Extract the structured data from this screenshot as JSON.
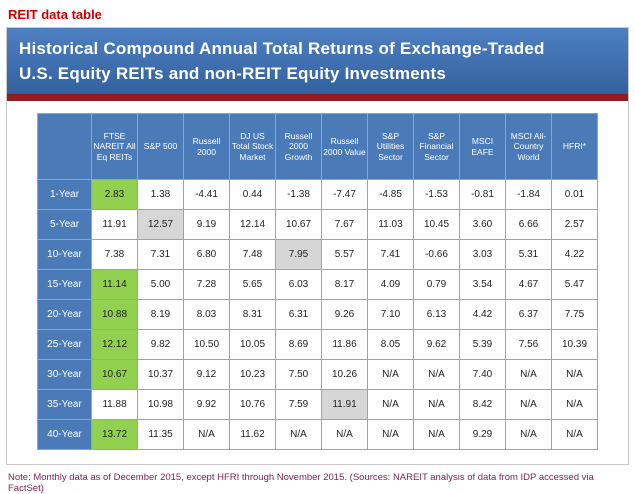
{
  "page_title": "REIT data table",
  "banner": {
    "line1": "Historical Compound Annual Total Returns of Exchange-Traded",
    "line2": "U.S. Equity REITs and non-REIT Equity Investments"
  },
  "note": "Note: Monthly data as of December 2015, except HFRI through November 2015. (Sources: NAREIT analysis of data from IDP accessed via FactSet)",
  "colors": {
    "title_red": "#cc0000",
    "banner_top": "#4d80c2",
    "banner_bottom": "#33619f",
    "stripe_red": "#8e1f1f",
    "header_blue": "#4a7ab8",
    "highlight_green": "#92d050",
    "highlight_gray": "#d6d6d6",
    "note_color": "#7c2457",
    "border_gray": "#c9c9c9"
  },
  "chart_data": {
    "type": "table",
    "title": "Historical Compound Annual Total Returns of Exchange-Traded U.S. Equity REITs and non-REIT Equity Investments",
    "columns": [
      "FTSE NAREIT All Eq REITs",
      "S&P 500",
      "Russell 2000",
      "DJ US Total Stock Market",
      "Russell 2000 Growth",
      "Russell 2000 Value",
      "S&P Utilities Sector",
      "S&P Financial Sector",
      "MSCI EAFE",
      "MSCI All-Country World",
      "HFRI*"
    ],
    "rows": [
      {
        "label": "1-Year",
        "values": [
          "2.83",
          "1.38",
          "-4.41",
          "0.44",
          "-1.38",
          "-7.47",
          "-4.85",
          "-1.53",
          "-0.81",
          "-1.84",
          "0.01"
        ],
        "highlight_col": 0,
        "highlight_color": "green"
      },
      {
        "label": "5-Year",
        "values": [
          "11.91",
          "12.57",
          "9.19",
          "12.14",
          "10.67",
          "7.67",
          "11.03",
          "10.45",
          "3.60",
          "6.66",
          "2.57"
        ],
        "highlight_col": 1,
        "highlight_color": "gray"
      },
      {
        "label": "10-Year",
        "values": [
          "7.38",
          "7.31",
          "6.80",
          "7.48",
          "7.95",
          "5.57",
          "7.41",
          "-0.66",
          "3.03",
          "5.31",
          "4.22"
        ],
        "highlight_col": 4,
        "highlight_color": "gray"
      },
      {
        "label": "15-Year",
        "values": [
          "11.14",
          "5.00",
          "7.28",
          "5.65",
          "6.03",
          "8.17",
          "4.09",
          "0.79",
          "3.54",
          "4.67",
          "5.47"
        ],
        "highlight_col": 0,
        "highlight_color": "green"
      },
      {
        "label": "20-Year",
        "values": [
          "10.88",
          "8.19",
          "8.03",
          "8.31",
          "6.31",
          "9.26",
          "7.10",
          "6.13",
          "4.42",
          "6.37",
          "7.75"
        ],
        "highlight_col": 0,
        "highlight_color": "green"
      },
      {
        "label": "25-Year",
        "values": [
          "12.12",
          "9.82",
          "10.50",
          "10.05",
          "8.69",
          "11.86",
          "8.05",
          "9.62",
          "5.39",
          "7.56",
          "10.39"
        ],
        "highlight_col": 0,
        "highlight_color": "green"
      },
      {
        "label": "30-Year",
        "values": [
          "10.67",
          "10.37",
          "9.12",
          "10.23",
          "7.50",
          "10.26",
          "N/A",
          "N/A",
          "7.40",
          "N/A",
          "N/A"
        ],
        "highlight_col": 0,
        "highlight_color": "green"
      },
      {
        "label": "35-Year",
        "values": [
          "11.88",
          "10.98",
          "9.92",
          "10.76",
          "7.59",
          "11.91",
          "N/A",
          "N/A",
          "8.42",
          "N/A",
          "N/A"
        ],
        "highlight_col": 5,
        "highlight_color": "gray"
      },
      {
        "label": "40-Year",
        "values": [
          "13.72",
          "11.35",
          "N/A",
          "11.62",
          "N/A",
          "N/A",
          "N/A",
          "N/A",
          "9.29",
          "N/A",
          "N/A"
        ],
        "highlight_col": 0,
        "highlight_color": "green"
      }
    ]
  }
}
